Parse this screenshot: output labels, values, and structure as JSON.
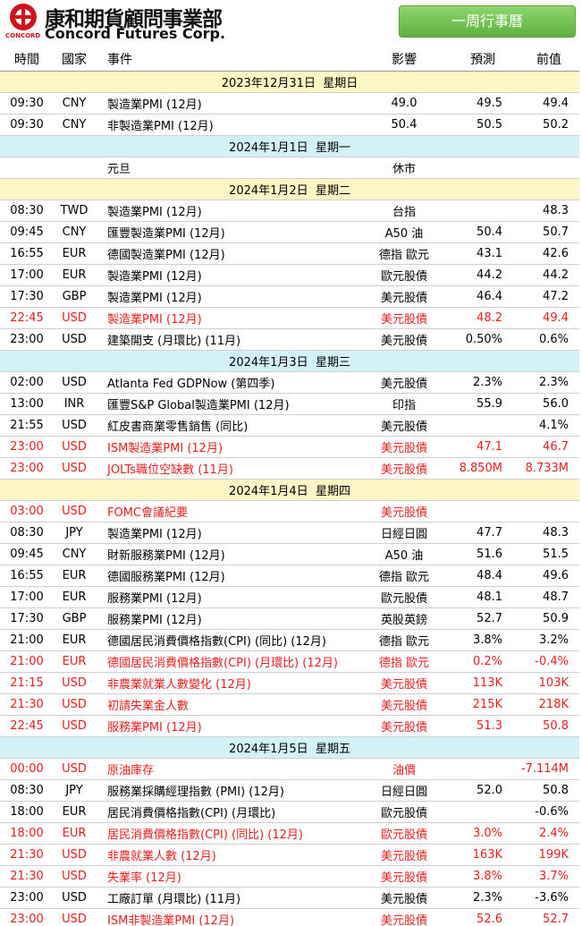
{
  "header": {
    "logo_chinese": "康和期貨顧問事業部",
    "logo_english": "Concord Futures Corp.",
    "logo_small": "CONCORD",
    "button": "一周行事曆"
  },
  "table": {
    "columns": [
      "時間",
      "國家",
      "事件",
      "影響",
      "預測",
      "前值"
    ],
    "sections": [
      {
        "date": "2023年12月31日  星期日",
        "color": "#fdf5c4",
        "rows": [
          {
            "cells": [
              "09:30",
              "CNY",
              "製造業PMI (12月)",
              "49.0",
              "49.5",
              "49.4"
            ]
          },
          {
            "cells": [
              "09:30",
              "CNY",
              "非製造業PMI (12月)",
              "50.4",
              "50.5",
              "50.2"
            ]
          }
        ]
      },
      {
        "date": "2024年1月1日  星期一",
        "color": "#d2f2f7",
        "rows": [
          {
            "cells": [
              null,
              null,
              "元旦",
              "休市",
              null,
              null
            ]
          }
        ]
      },
      {
        "date": "2024年1月2日  星期二",
        "color": "#fdf5c4",
        "rows": [
          {
            "cells": [
              "08:30",
              "TWD",
              "製造業PMI (12月)",
              "台指",
              null,
              "48.3"
            ]
          },
          {
            "cells": [
              "09:45",
              "CNY",
              "匯豐製造業PMI (12月)",
              "A50 油",
              "50.4",
              "50.7"
            ]
          },
          {
            "cells": [
              "16:55",
              "EUR",
              "德國製造業PMI (12月)",
              "德指 歐元",
              "43.1",
              "42.6"
            ]
          },
          {
            "cells": [
              "17:00",
              "EUR",
              "製造業PMI (12月)",
              "歐元股債",
              "44.2",
              "44.2"
            ]
          },
          {
            "cells": [
              "17:30",
              "GBP",
              "製造業PMI (12月)",
              "美元股債",
              "46.4",
              "47.2"
            ]
          },
          {
            "cells": [
              "22:45",
              "USD",
              "製造業PMI (12月)",
              "美元股債",
              "48.2",
              "49.4"
            ],
            "color": "#e8211e"
          },
          {
            "cells": [
              "23:00",
              "USD",
              "建築開支 (月環比) (11月)",
              "美元股債",
              "0.50%",
              "0.6%"
            ]
          }
        ]
      },
      {
        "date": "2024年1月3日  星期三",
        "color": "#d2f2f7",
        "rows": [
          {
            "cells": [
              "02:00",
              "USD",
              "Atlanta Fed GDPNow (第四季)",
              "美元股債",
              "2.3%",
              "2.3%"
            ]
          },
          {
            "cells": [
              "13:00",
              "INR",
              "匯豐S&P Global製造業PMI (12月)",
              "印指",
              "55.9",
              "56.0"
            ]
          },
          {
            "cells": [
              "21:55",
              "USD",
              "紅皮書商業零售銷售 (同比)",
              "美元股債",
              null,
              "4.1%"
            ]
          },
          {
            "cells": [
              "23:00",
              "USD",
              "ISM製造業PMI (12月)",
              "美元股債",
              "47.1",
              "46.7"
            ],
            "color": "#e8211e"
          },
          {
            "cells": [
              "23:00",
              "USD",
              "JOLTs職位空缺數 (11月)",
              "美元股債",
              "8.850M",
              "8.733M"
            ],
            "color": "#e8211e"
          }
        ]
      },
      {
        "date": "2024年1月4日  星期四",
        "color": "#fdf5c4",
        "rows": [
          {
            "cells": [
              "03:00",
              "USD",
              "FOMC會議紀要",
              "美元股債",
              null,
              null
            ],
            "color": "#e8211e"
          },
          {
            "cells": [
              "08:30",
              "JPY",
              "製造業PMI (12月)",
              "日經日圓",
              "47.7",
              "48.3"
            ]
          },
          {
            "cells": [
              "09:45",
              "CNY",
              "財新服務業PMI (12月)",
              "A50 油",
              "51.6",
              "51.5"
            ]
          },
          {
            "cells": [
              "16:55",
              "EUR",
              "德國服務業PMI (12月)",
              "德指 歐元",
              "48.4",
              "49.6"
            ]
          },
          {
            "cells": [
              "17:00",
              "EUR",
              "服務業PMI (12月)",
              "歐元股債",
              "48.1",
              "48.7"
            ]
          },
          {
            "cells": [
              "17:30",
              "GBP",
              "服務業PMI (12月)",
              "英股英鎊",
              "52.7",
              "50.9"
            ]
          },
          {
            "cells": [
              "21:00",
              "EUR",
              "德國居民消費價格指數(CPI) (同比) (12月)",
              "德指 歐元",
              "3.8%",
              "3.2%"
            ]
          },
          {
            "cells": [
              "21:00",
              "EUR",
              "德國居民消費價格指數(CPI) (月環比) (12月)",
              "德指 歐元",
              "0.2%",
              "-0.4%"
            ],
            "color": "#e8211e"
          },
          {
            "cells": [
              "21:15",
              "USD",
              "非農業就業人數變化 (12月)",
              "美元股債",
              "113K",
              "103K"
            ],
            "color": "#e8211e"
          },
          {
            "cells": [
              "21:30",
              "USD",
              "初請失業金人數",
              "美元股債",
              "215K",
              "218K"
            ],
            "color": "#e8211e"
          },
          {
            "cells": [
              "22:45",
              "USD",
              "服務業PMI (12月)",
              "美元股債",
              "51.3",
              "50.8"
            ],
            "color": "#e8211e"
          }
        ]
      },
      {
        "date": "2024年1月5日  星期五",
        "color": "#d2f2f7",
        "rows": [
          {
            "cells": [
              "00:00",
              "USD",
              "原油庫存",
              "油價",
              null,
              "-7.114M"
            ],
            "color": "#e8211e"
          },
          {
            "cells": [
              "08:30",
              "JPY",
              "服務業採購經理指數 (PMI) (12月)",
              "日經日圓",
              "52.0",
              "50.8"
            ]
          },
          {
            "cells": [
              "18:00",
              "EUR",
              "居民消費價格指數(CPI) (月環比)",
              "歐元股債",
              null,
              "-0.6%"
            ]
          },
          {
            "cells": [
              "18:00",
              "EUR",
              "居民消費價格指數(CPI) (同比) (12月)",
              "歐元股債",
              "3.0%",
              "2.4%"
            ],
            "color": "#e8211e"
          },
          {
            "cells": [
              "21:30",
              "USD",
              "非農就業人數 (12月)",
              "美元股債",
              "163K",
              "199K"
            ],
            "color": "#e8211e"
          },
          {
            "cells": [
              "21:30",
              "USD",
              "失業率 (12月)",
              "美元股債",
              "3.8%",
              "3.7%"
            ],
            "color": "#e8211e"
          },
          {
            "cells": [
              "23:00",
              "USD",
              "工廠訂單 (月環比) (11月)",
              "美元股債",
              "2.3%",
              "-3.6%"
            ]
          },
          {
            "cells": [
              "23:00",
              "USD",
              "ISM非製造業PMI (12月)",
              "美元股債",
              "52.6",
              "52.7"
            ],
            "color": "#e8211e"
          }
        ]
      }
    ]
  }
}
